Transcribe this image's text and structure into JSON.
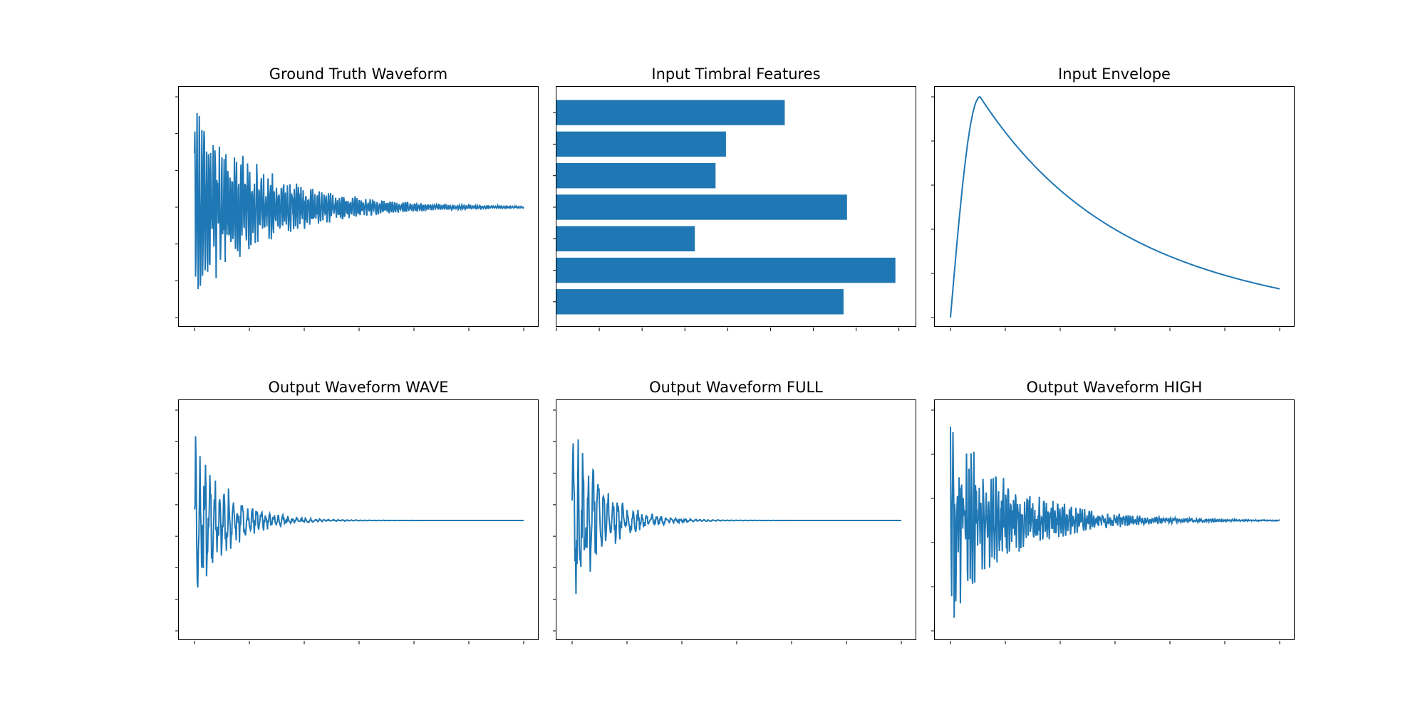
{
  "colors": {
    "series": "#1f77b4",
    "axes": "#000000",
    "background": "#ffffff"
  },
  "chart_data": [
    {
      "type": "line",
      "title": "Ground Truth Waveform",
      "tick_labels": "none",
      "x_ticks": 7,
      "y_ticks": 7,
      "signal": {
        "amp": 0.95,
        "decay": 4.6,
        "cycles": 150,
        "onset": 0.0,
        "noise": 0.35,
        "seed": 3,
        "tail_points": 900
      }
    },
    {
      "type": "bar",
      "orientation": "horizontal",
      "title": "Input Timbral Features",
      "tick_labels": "none",
      "x_ticks": 9,
      "values": [
        0.83,
        0.98,
        0.4,
        0.84,
        0.46,
        0.49,
        0.66
      ],
      "xlim": [
        0,
        1.03
      ]
    },
    {
      "type": "line",
      "title": "Input Envelope",
      "tick_labels": "none",
      "x_ticks": 7,
      "y_ticks": 6,
      "envelope": {
        "peak_at": 0.09,
        "end_level": 0.13,
        "decay_rate": 2.3
      }
    },
    {
      "type": "line",
      "title": "Output Waveform WAVE",
      "tick_labels": "none",
      "x_ticks": 7,
      "y_ticks": 8,
      "signal": {
        "amp": 1.0,
        "decay": 11.0,
        "cycles": 70,
        "onset": 0.0,
        "noise": 0.45,
        "seed": 11,
        "tail_points": 600
      }
    },
    {
      "type": "line",
      "title": "Output Waveform FULL",
      "tick_labels": "none",
      "x_ticks": 7,
      "y_ticks": 8,
      "signal": {
        "amp": 1.0,
        "decay": 11.5,
        "cycles": 70,
        "onset": 0.0,
        "noise": 0.45,
        "seed": 23,
        "tail_points": 600
      }
    },
    {
      "type": "line",
      "title": "Output Waveform HIGH",
      "tick_labels": "none",
      "x_ticks": 7,
      "y_ticks": 6,
      "signal": {
        "amp": 0.95,
        "decay": 5.2,
        "cycles": 140,
        "onset": 0.0,
        "noise": 0.55,
        "seed": 41,
        "tail_points": 800
      }
    }
  ]
}
